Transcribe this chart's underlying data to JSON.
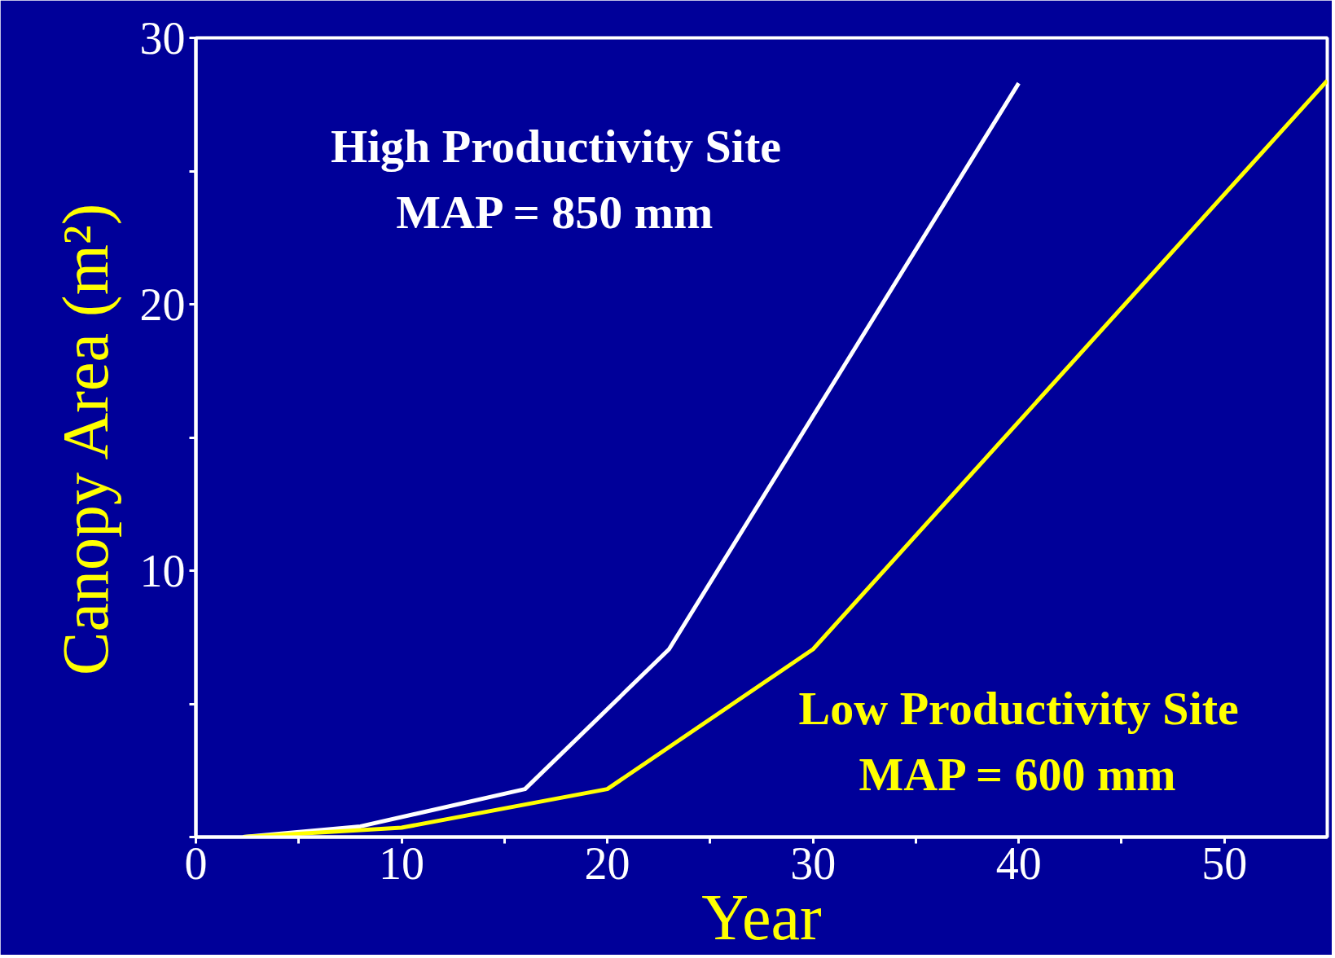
{
  "chart_data": {
    "type": "line",
    "xlabel": "Year",
    "ylabel": "Canopy Area (m²)",
    "xlim": [
      0,
      55
    ],
    "ylim": [
      0,
      30
    ],
    "xticks": [
      0,
      {
        "value": 5,
        "label": null
      },
      10,
      {
        "value": 15,
        "label": null
      },
      20,
      {
        "value": 25,
        "label": null
      },
      30,
      {
        "value": 35,
        "label": null
      },
      40,
      {
        "value": 45,
        "label": null
      },
      50
    ],
    "yticks": [
      {
        "value": 0,
        "label": null
      },
      {
        "value": 5,
        "label": null
      },
      10,
      {
        "value": 15,
        "label": null
      },
      20,
      {
        "value": 25,
        "label": null
      },
      30
    ],
    "grid": false,
    "marker": "none",
    "line_style": "solid",
    "series": [
      {
        "name": "High Productivity Site\nMAP = 850 mm",
        "color": "#ffffff",
        "x": [
          2.3,
          8,
          16,
          23,
          40
        ],
        "values": [
          0,
          0.4,
          1.8,
          7.05,
          28.3
        ]
      },
      {
        "name": "Low Productivity Site\nMAP = 600 mm",
        "color": "#ffff00",
        "x": [
          2.3,
          10,
          20,
          30,
          55
        ],
        "values": [
          0,
          0.35,
          1.8,
          7.05,
          28.4
        ]
      }
    ]
  }
}
